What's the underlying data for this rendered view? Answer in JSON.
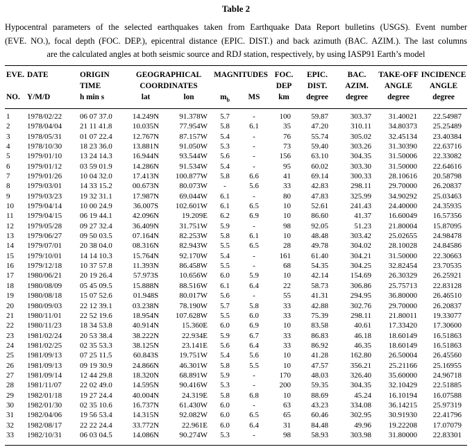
{
  "title": "Table 2",
  "caption_lines": [
    "Hypocentral parameters of the selected earthquakes taken from Earthquake Data Report bulletins (USGS). Event number",
    "(EVE. NO.), focal depth (FOC. DEP.), epicentral distance (EPIC. DIST.) and back azimuth (BAC. AZIM.). The last columns",
    "are the calculated angles at both seismic source and RDJ station, respectively, by using IASP91 Earth’s model"
  ],
  "table": {
    "header": {
      "row1": {
        "eve": "EVE.",
        "date": "DATE",
        "origin": "ORIGIN",
        "geo": "GEOGRAPHICAL",
        "mag": "MAGNITUDES",
        "foc": "FOC.",
        "epic": "EPIC.",
        "bac": "BAC.",
        "takeoff": "TAKE-OFF",
        "incidence": "INCIDENCE"
      },
      "row2": {
        "time": "TIME",
        "coord": "COORDINATES",
        "dep": "DEP",
        "dist": "DIST.",
        "azim": "AZIM.",
        "angle1": "ANGLE",
        "angle2": "ANGLE"
      },
      "row3": {
        "no": "NO.",
        "ymd": "Y/M/D",
        "hms": "h min s",
        "lat": "lat",
        "lon": "lon",
        "mb_base": "m",
        "mb_sub": "b",
        "ms": "MS",
        "km": "km",
        "deg_epic": "degree",
        "deg_bac": "degree",
        "deg_takeoff": "degree",
        "deg_incidence": "degree"
      }
    },
    "column_ids": [
      "no",
      "date",
      "time",
      "lat",
      "lon",
      "mb",
      "ms",
      "dep",
      "epic",
      "bac",
      "takeoff",
      "incidence"
    ],
    "rows": [
      [
        "1",
        "1978/02/22",
        "06 07 37.0",
        "14.249N",
        "91.378W",
        "5.7",
        "-",
        "100",
        "59.87",
        "303.37",
        "31.40021",
        "22.54987"
      ],
      [
        "2",
        "1978/04/04",
        "21 11 41.8",
        "10.035N",
        "77.954W",
        "5.8",
        "6.1",
        "35",
        "47.20",
        "310.11",
        "34.80373",
        "25.25489"
      ],
      [
        "3",
        "1978/05/31",
        "01 07 22.4",
        "12.767N",
        "87.157W",
        "5.4",
        "-",
        "76",
        "55.74",
        "305.02",
        "32.45134",
        "23.40384"
      ],
      [
        "4",
        "1978/10/30",
        "18 23 36.0",
        "13.881N",
        "91.050W",
        "5.3",
        "-",
        "73",
        "59.40",
        "303.26",
        "31.30390",
        "22.63716"
      ],
      [
        "5",
        "1979/01/10",
        "13 24 14.3",
        "16.944N",
        "93.544W",
        "5.6",
        "-",
        "156",
        "63.10",
        "304.35",
        "31.50006",
        "22.33082"
      ],
      [
        "6",
        "1979/01/12",
        "03 59 01.9",
        "14.286N",
        "91.534W",
        "5.4",
        "-",
        "95",
        "60.02",
        "303.30",
        "31.50000",
        "22.64616"
      ],
      [
        "7",
        "1979/01/26",
        "10 04 32.0",
        "17.413N",
        "100.877W",
        "5.8",
        "6.6",
        "41",
        "69.14",
        "300.33",
        "28.10616",
        "20.58798"
      ],
      [
        "8",
        "1979/03/01",
        "14 33 15.2",
        "00.673N",
        "80.073W",
        "-",
        "5.6",
        "33",
        "42.83",
        "298.11",
        "29.70000",
        "26.20837"
      ],
      [
        "9",
        "1979/03/23",
        "19 32 31.1",
        "17.987N",
        "69.044W",
        "6.1",
        "-",
        "80",
        "47.83",
        "325.99",
        "34.90292",
        "25.03463"
      ],
      [
        "10",
        "1979/04/14",
        "10 00 24.9",
        "36.007S",
        "102.601W",
        "6.1",
        "6.5",
        "10",
        "52.61",
        "241.43",
        "24.40000",
        "24.35935"
      ],
      [
        "11",
        "1979/04/15",
        "06 19 44.1",
        "42.096N",
        "19.209E",
        "6.2",
        "6.9",
        "10",
        "86.60",
        "41.37",
        "16.60049",
        "16.57356"
      ],
      [
        "12",
        "1979/05/28",
        "09 27 32.4",
        "36.409N",
        "31.751W",
        "5.9",
        "-",
        "98",
        "92.05",
        "51.23",
        "21.80004",
        "15.87095"
      ],
      [
        "13",
        "1979/06/27",
        "09 50 03.5",
        "07.164N",
        "82.253W",
        "5.8",
        "6.1",
        "10",
        "48.48",
        "303.42",
        "25.02655",
        "24.98478"
      ],
      [
        "14",
        "1979/07/01",
        "20 38 04.0",
        "08.316N",
        "82.943W",
        "5.5",
        "6.5",
        "28",
        "49.78",
        "304.02",
        "28.10028",
        "24.84586"
      ],
      [
        "15",
        "1979/10/01",
        "14 14 10.3",
        "15.764N",
        "92.170W",
        "5.4",
        "-",
        "161",
        "61.40",
        "304.21",
        "31.50000",
        "22.30663"
      ],
      [
        "16",
        "1979/12/18",
        "10 37 57.8",
        "11.393N",
        "86.458W",
        "5.5",
        "-",
        "68",
        "54.35",
        "304.25",
        "32.82454",
        "23.70535"
      ],
      [
        "17",
        "1980/06/21",
        "20 19 26.4",
        "57.973S",
        "10.656W",
        "6.0",
        "5.9",
        "10",
        "42.14",
        "154.69",
        "26.30329",
        "26.25921"
      ],
      [
        "18",
        "1980/08/09",
        "05 45 09.5",
        "15.888N",
        "88.516W",
        "6.1",
        "6.4",
        "22",
        "58.73",
        "306.86",
        "25.75713",
        "22.83128"
      ],
      [
        "19",
        "1980/08/18",
        "15 07 52.6",
        "01.948S",
        "80.017W",
        "5.6",
        "-",
        "55",
        "41.31",
        "294.95",
        "36.80000",
        "26.46510"
      ],
      [
        "20",
        "1980/09/03",
        "22 12 39.1",
        "03.238N",
        "78.190W",
        "5.7",
        "5.8",
        "33",
        "42.88",
        "302.76",
        "29.70000",
        "26.20837"
      ],
      [
        "21",
        "1980/11/01",
        "22 52 19.6",
        "18.954N",
        "107.628W",
        "5.5",
        "6.0",
        "33",
        "75.39",
        "298.11",
        "21.80011",
        "19.33077"
      ],
      [
        "22",
        "1980/11/23",
        "18 34 53.8",
        "40.914N",
        "15.360E",
        "6.0",
        "6.9",
        "10",
        "83.58",
        "40.61",
        "17.33420",
        "17.30600"
      ],
      [
        "23",
        "1981/02/24",
        "20 53 38.4",
        "38.222N",
        "22.934E",
        "5.9",
        "6.7",
        "33",
        "86.83",
        "46.18",
        "18.60149",
        "16.51863"
      ],
      [
        "24",
        "1981/02/25",
        "02 35 53.3",
        "38.125N",
        "23.141E",
        "5.6",
        "6.4",
        "33",
        "86.92",
        "46.35",
        "18.60149",
        "16.51863"
      ],
      [
        "25",
        "1981/09/13",
        "07 25 11.5",
        "60.843S",
        "19.751W",
        "5.4",
        "5.6",
        "10",
        "41.28",
        "162.80",
        "26.50004",
        "26.45560"
      ],
      [
        "26",
        "1981/09/13",
        "09 19 30.9",
        "24.866N",
        "46.301W",
        "5.8",
        "5.5",
        "10",
        "47.57",
        "356.21",
        "25.21166",
        "25.16955"
      ],
      [
        "27",
        "1981/09/14",
        "12 44 29.8",
        "18.320N",
        "68.891W",
        "5.9",
        "-",
        "170",
        "48.03",
        "326.40",
        "35.60000",
        "24.96718"
      ],
      [
        "28",
        "1981/11/07",
        "22 02 49.0",
        "14.595N",
        "90.416W",
        "5.3",
        "-",
        "200",
        "59.35",
        "304.35",
        "32.10429",
        "22.51885"
      ],
      [
        "29",
        "1982/01/18",
        "19 27 24.4",
        "40.004N",
        "24.319E",
        "5.8",
        "6.8",
        "10",
        "88.69",
        "45.24",
        "16.10194",
        "16.07588"
      ],
      [
        "30",
        "1982/01/30",
        "02 35 10.6",
        "16.737N",
        "61.430W",
        "6.0",
        "-",
        "63",
        "43.23",
        "334.08",
        "36.14215",
        "25.97319"
      ],
      [
        "31",
        "1982/04/06",
        "19 56 53.4",
        "14.315N",
        "92.082W",
        "6.0",
        "6.5",
        "65",
        "60.46",
        "302.95",
        "30.91930",
        "22.41796"
      ],
      [
        "32",
        "1982/08/17",
        "22 22 24.4",
        "33.772N",
        "22.961E",
        "6.0",
        "6.4",
        "31",
        "84.48",
        "49.96",
        "19.22208",
        "17.07079"
      ],
      [
        "33",
        "1982/10/31",
        "06 03 04.5",
        "14.086N",
        "90.274W",
        "5.3",
        "-",
        "98",
        "58.93",
        "303.98",
        "31.80000",
        "22.83301"
      ]
    ]
  }
}
